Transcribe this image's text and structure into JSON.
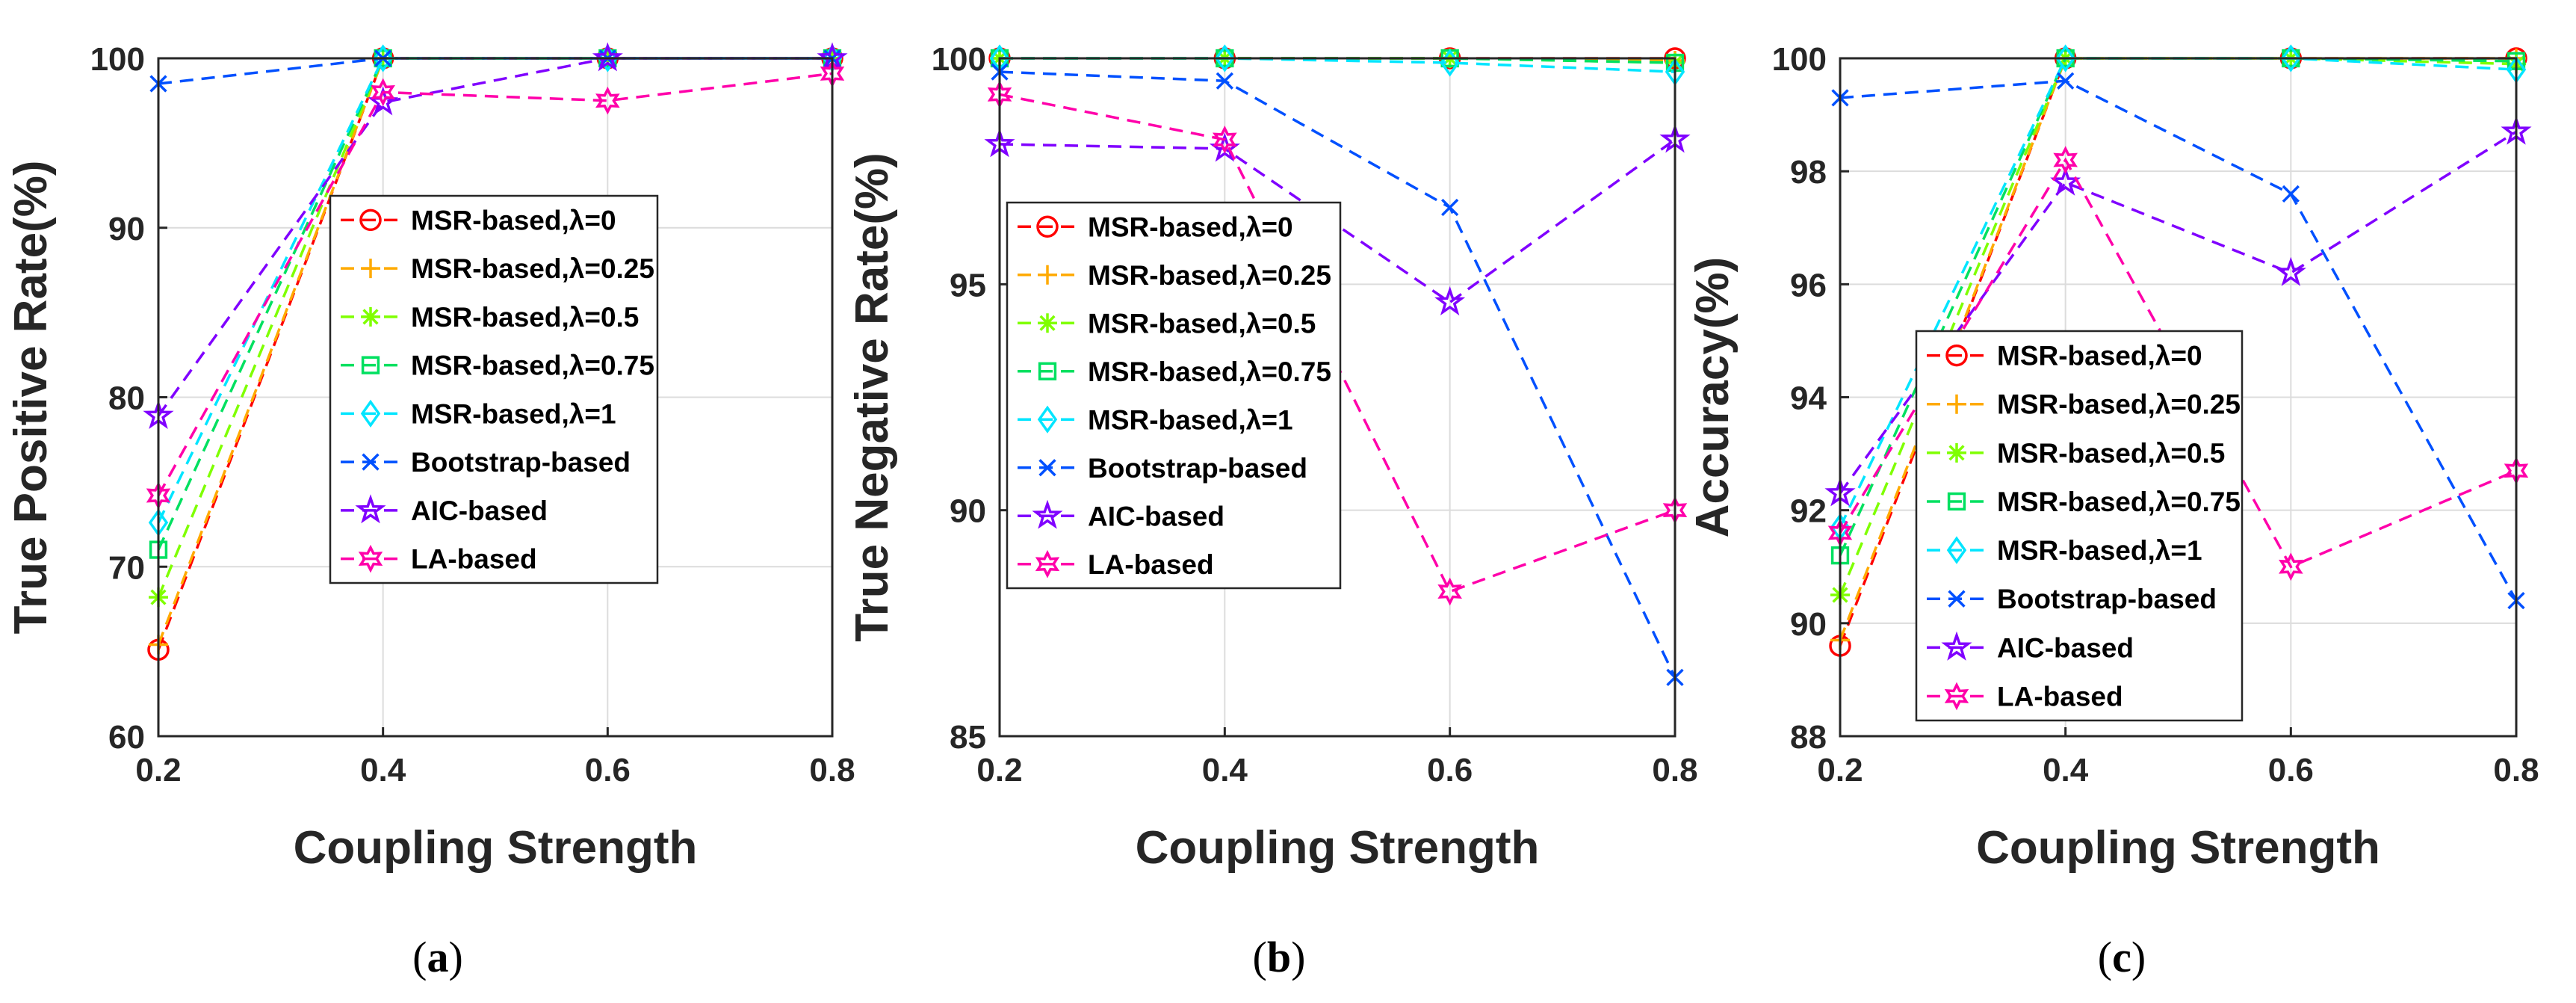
{
  "chart_data": [
    {
      "type": "line",
      "panel_label": "a",
      "xlabel": "Coupling Strength",
      "ylabel": "True Positive Rate(%)",
      "xlim": [
        0.2,
        0.8
      ],
      "ylim": [
        60,
        100
      ],
      "x": [
        0.2,
        0.4,
        0.6,
        0.8
      ],
      "xticks": [
        "0.2",
        "0.4",
        "0.6",
        "0.8"
      ],
      "yticks": [
        "60",
        "70",
        "80",
        "90",
        "100"
      ],
      "grid": true,
      "legend_position": "center",
      "series": [
        {
          "name": "MSR-based,λ=0",
          "color": "#ff0000",
          "marker": "circle",
          "values": [
            65.1,
            100,
            100,
            100
          ]
        },
        {
          "name": "MSR-based,λ=0.25",
          "color": "#ffaa00",
          "marker": "plus",
          "values": [
            65.4,
            100,
            100,
            100
          ]
        },
        {
          "name": "MSR-based,λ=0.5",
          "color": "#7fff00",
          "marker": "asterisk",
          "values": [
            68.2,
            100,
            100,
            100
          ]
        },
        {
          "name": "MSR-based,λ=0.75",
          "color": "#00e060",
          "marker": "square",
          "values": [
            71.0,
            100,
            100,
            100
          ]
        },
        {
          "name": "MSR-based,λ=1",
          "color": "#00e5ff",
          "marker": "diamond",
          "values": [
            72.6,
            100,
            100,
            100
          ]
        },
        {
          "name": "Bootstrap-based",
          "color": "#0050ff",
          "marker": "x",
          "values": [
            98.5,
            100,
            100,
            100
          ]
        },
        {
          "name": "AIC-based",
          "color": "#8000ff",
          "marker": "pentagram",
          "values": [
            78.9,
            97.4,
            100,
            100
          ]
        },
        {
          "name": "LA-based",
          "color": "#ff00aa",
          "marker": "hexagram",
          "values": [
            74.2,
            98.0,
            97.5,
            99.1
          ]
        }
      ]
    },
    {
      "type": "line",
      "panel_label": "b",
      "xlabel": "Coupling Strength",
      "ylabel": "True Negative Rate(%)",
      "xlim": [
        0.2,
        0.8
      ],
      "ylim": [
        85,
        100
      ],
      "x": [
        0.2,
        0.4,
        0.6,
        0.8
      ],
      "xticks": [
        "0.2",
        "0.4",
        "0.6",
        "0.8"
      ],
      "yticks": [
        "85",
        "90",
        "95",
        "100"
      ],
      "grid": true,
      "legend_position": "center-left",
      "series": [
        {
          "name": "MSR-based,λ=0",
          "color": "#ff0000",
          "marker": "circle",
          "values": [
            100,
            100,
            100,
            100
          ]
        },
        {
          "name": "MSR-based,λ=0.25",
          "color": "#ffaa00",
          "marker": "plus",
          "values": [
            100,
            100,
            100,
            99.95
          ]
        },
        {
          "name": "MSR-based,λ=0.5",
          "color": "#7fff00",
          "marker": "asterisk",
          "values": [
            100,
            100,
            100,
            99.9
          ]
        },
        {
          "name": "MSR-based,λ=0.75",
          "color": "#00e060",
          "marker": "square",
          "values": [
            100,
            100,
            100,
            99.9
          ]
        },
        {
          "name": "MSR-based,λ=1",
          "color": "#00e5ff",
          "marker": "diamond",
          "values": [
            100,
            100,
            99.9,
            99.7
          ]
        },
        {
          "name": "Bootstrap-based",
          "color": "#0050ff",
          "marker": "x",
          "values": [
            99.7,
            99.5,
            96.7,
            86.3
          ]
        },
        {
          "name": "AIC-based",
          "color": "#8000ff",
          "marker": "pentagram",
          "values": [
            98.1,
            98.0,
            94.6,
            98.2
          ]
        },
        {
          "name": "LA-based",
          "color": "#ff00aa",
          "marker": "hexagram",
          "values": [
            99.2,
            98.2,
            88.2,
            90.0
          ]
        }
      ]
    },
    {
      "type": "line",
      "panel_label": "c",
      "xlabel": "Coupling Strength",
      "ylabel": "Accuracy(%)",
      "xlim": [
        0.2,
        0.8
      ],
      "ylim": [
        88,
        100
      ],
      "x": [
        0.2,
        0.4,
        0.6,
        0.8
      ],
      "xticks": [
        "0.2",
        "0.4",
        "0.6",
        "0.8"
      ],
      "yticks": [
        "88",
        "90",
        "92",
        "94",
        "96",
        "98",
        "100"
      ],
      "grid": true,
      "legend_position": "bottom-left",
      "series": [
        {
          "name": "MSR-based,λ=0",
          "color": "#ff0000",
          "marker": "circle",
          "values": [
            89.6,
            100,
            100,
            100
          ]
        },
        {
          "name": "MSR-based,λ=0.25",
          "color": "#ffaa00",
          "marker": "plus",
          "values": [
            89.7,
            100,
            100,
            100
          ]
        },
        {
          "name": "MSR-based,λ=0.5",
          "color": "#7fff00",
          "marker": "asterisk",
          "values": [
            90.5,
            100,
            100,
            99.9
          ]
        },
        {
          "name": "MSR-based,λ=0.75",
          "color": "#00e060",
          "marker": "square",
          "values": [
            91.2,
            100,
            100,
            99.95
          ]
        },
        {
          "name": "MSR-based,λ=1",
          "color": "#00e5ff",
          "marker": "diamond",
          "values": [
            91.7,
            100,
            100,
            99.8
          ]
        },
        {
          "name": "Bootstrap-based",
          "color": "#0050ff",
          "marker": "x",
          "values": [
            99.3,
            99.6,
            97.6,
            90.4
          ]
        },
        {
          "name": "AIC-based",
          "color": "#8000ff",
          "marker": "pentagram",
          "values": [
            92.3,
            97.8,
            96.2,
            98.7
          ]
        },
        {
          "name": "LA-based",
          "color": "#ff00aa",
          "marker": "hexagram",
          "values": [
            91.6,
            98.2,
            91.0,
            92.7
          ]
        }
      ]
    }
  ]
}
